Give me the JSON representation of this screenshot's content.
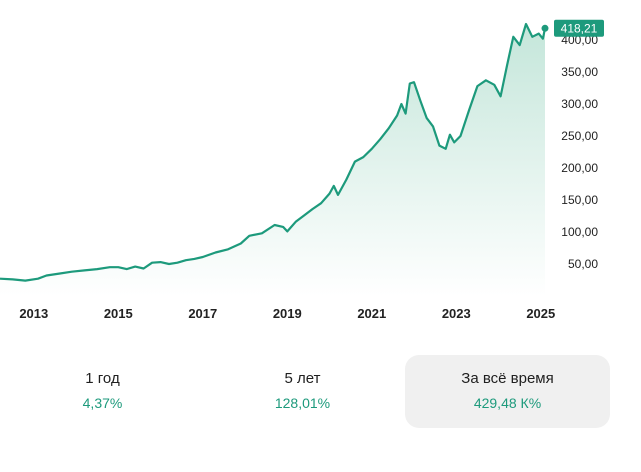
{
  "chart_data": {
    "type": "area",
    "title": "",
    "xlabel": "",
    "ylabel": "",
    "x_ticks": [
      "2013",
      "2015",
      "2017",
      "2019",
      "2021",
      "2023",
      "2025"
    ],
    "y_ticks": [
      "50,00",
      "100,00",
      "150,00",
      "200,00",
      "250,00",
      "300,00",
      "350,00",
      "400,00"
    ],
    "ylim": [
      0,
      420
    ],
    "xlim": [
      2012.2,
      2025.1
    ],
    "grid": false,
    "last_value_label": "418,21",
    "series": [
      {
        "values": [
          [
            2012.2,
            27
          ],
          [
            2012.5,
            26
          ],
          [
            2012.8,
            24
          ],
          [
            2013.1,
            27
          ],
          [
            2013.3,
            32
          ],
          [
            2013.6,
            35
          ],
          [
            2013.9,
            38
          ],
          [
            2014.2,
            40
          ],
          [
            2014.5,
            42
          ],
          [
            2014.8,
            45
          ],
          [
            2015.0,
            45
          ],
          [
            2015.2,
            42
          ],
          [
            2015.4,
            46
          ],
          [
            2015.6,
            43
          ],
          [
            2015.8,
            52
          ],
          [
            2016.0,
            53
          ],
          [
            2016.2,
            50
          ],
          [
            2016.4,
            52
          ],
          [
            2016.6,
            56
          ],
          [
            2016.8,
            58
          ],
          [
            2017.0,
            61
          ],
          [
            2017.3,
            68
          ],
          [
            2017.6,
            73
          ],
          [
            2017.9,
            82
          ],
          [
            2018.1,
            94
          ],
          [
            2018.4,
            98
          ],
          [
            2018.7,
            111
          ],
          [
            2018.9,
            108
          ],
          [
            2019.0,
            101
          ],
          [
            2019.2,
            116
          ],
          [
            2019.4,
            126
          ],
          [
            2019.6,
            136
          ],
          [
            2019.8,
            145
          ],
          [
            2020.0,
            160
          ],
          [
            2020.1,
            172
          ],
          [
            2020.2,
            158
          ],
          [
            2020.4,
            182
          ],
          [
            2020.6,
            210
          ],
          [
            2020.8,
            217
          ],
          [
            2021.0,
            230
          ],
          [
            2021.2,
            245
          ],
          [
            2021.4,
            262
          ],
          [
            2021.6,
            282
          ],
          [
            2021.7,
            300
          ],
          [
            2021.8,
            285
          ],
          [
            2021.9,
            332
          ],
          [
            2022.0,
            334
          ],
          [
            2022.15,
            305
          ],
          [
            2022.3,
            278
          ],
          [
            2022.45,
            265
          ],
          [
            2022.6,
            235
          ],
          [
            2022.75,
            230
          ],
          [
            2022.85,
            252
          ],
          [
            2022.95,
            240
          ],
          [
            2023.1,
            250
          ],
          [
            2023.3,
            290
          ],
          [
            2023.5,
            328
          ],
          [
            2023.7,
            337
          ],
          [
            2023.9,
            330
          ],
          [
            2024.05,
            312
          ],
          [
            2024.2,
            360
          ],
          [
            2024.35,
            405
          ],
          [
            2024.5,
            392
          ],
          [
            2024.65,
            425
          ],
          [
            2024.8,
            405
          ],
          [
            2024.95,
            410
          ],
          [
            2025.05,
            402
          ],
          [
            2025.1,
            418.21
          ]
        ]
      }
    ]
  },
  "periods": [
    {
      "label": "1 год",
      "value": "4,37%"
    },
    {
      "label": "5 лет",
      "value": "128,01%"
    },
    {
      "label": "За всё время",
      "value": "429,48 К%"
    }
  ],
  "colors": {
    "line": "#1d9a7c",
    "area_top": "#c9e8dd",
    "area_bottom": "#ffffff",
    "badge": "#1d9a7c",
    "value_text": "#1d9a7c",
    "active_tab_bg": "#f0f0f0"
  }
}
